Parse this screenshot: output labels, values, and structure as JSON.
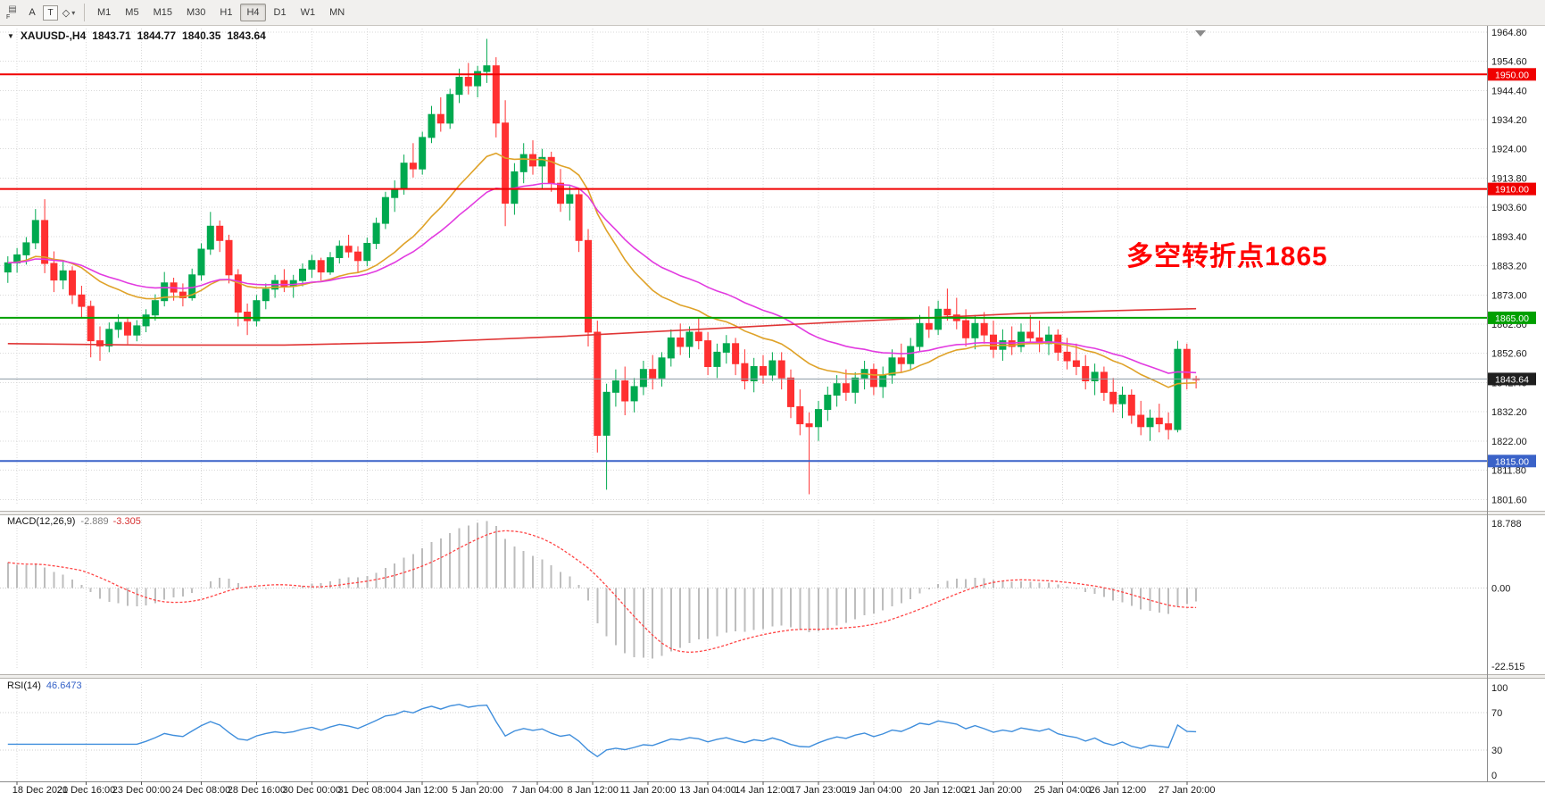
{
  "toolbar": {
    "left_tools": {
      "chart_tool_glyph": "▤",
      "chart_tool_caption": "F",
      "cursor_tool_label": "A",
      "text_tool_label": "T",
      "shapes_tool_glyph": "◇",
      "dropdown_arrow": "▾"
    },
    "timeframes": [
      "M1",
      "M5",
      "M15",
      "M30",
      "H1",
      "H4",
      "D1",
      "W1",
      "MN"
    ],
    "active_timeframe": "H4"
  },
  "chart_header": {
    "collapse_icon": "▼",
    "symbol_period": "XAUUSD-,H4",
    "ohlc": {
      "open": "1843.71",
      "high": "1844.77",
      "low": "1840.35",
      "close": "1843.64"
    }
  },
  "annotation": {
    "text": "多空转折点1865",
    "color": "#ff0000"
  },
  "indicators": {
    "macd": {
      "label": "MACD(12,26,9)",
      "value_main": "-2.889",
      "value_signal": "-3.305",
      "scale_labels": [
        "18.788",
        "0.00",
        "-22.515"
      ]
    },
    "rsi": {
      "label": "RSI(14)",
      "value": "46.6473",
      "scale_labels": [
        "100",
        "70",
        "30",
        "0"
      ],
      "levels": [
        70,
        30
      ]
    }
  },
  "price_axis": {
    "ticks": [
      "1964.80",
      "1954.60",
      "1944.40",
      "1934.20",
      "1924.00",
      "1913.80",
      "1903.60",
      "1893.40",
      "1883.20",
      "1873.00",
      "1862.80",
      "1852.60",
      "1842.40",
      "1832.20",
      "1822.00",
      "1811.80",
      "1801.60"
    ]
  },
  "horizontal_lines": [
    {
      "price": 1950.0,
      "label": "1950.00",
      "color": "#f00000"
    },
    {
      "price": 1910.0,
      "label": "1910.00",
      "color": "#f00000"
    },
    {
      "price": 1865.0,
      "label": "1865.00",
      "color": "#00a000"
    },
    {
      "price": 1815.0,
      "label": "1815.00",
      "color": "#3a62c8"
    }
  ],
  "bid_line": {
    "price": 1843.64,
    "label": "1843.64",
    "line_color": "#8c9aa5",
    "label_bg": "#1f1f1f"
  },
  "time_axis": {
    "labels": [
      [
        1,
        "18 Dec 2020"
      ],
      [
        8.5,
        "21 Dec 16:00"
      ],
      [
        14.5,
        "23 Dec 00:00"
      ],
      [
        21,
        "24 Dec 08:00"
      ],
      [
        27,
        "28 Dec 16:00"
      ],
      [
        33,
        "30 Dec 00:00"
      ],
      [
        39,
        "31 Dec 08:00"
      ],
      [
        45,
        "4 Jan 12:00"
      ],
      [
        51,
        "5 Jan 20:00"
      ],
      [
        57.5,
        "7 Jan 04:00"
      ],
      [
        63.5,
        "8 Jan 12:00"
      ],
      [
        69.5,
        "11 Jan 20:00"
      ],
      [
        76,
        "13 Jan 04:00"
      ],
      [
        82,
        "14 Jan 12:00"
      ],
      [
        88,
        "17 Jan 23:00"
      ],
      [
        94,
        "19 Jan 04:00"
      ],
      [
        101,
        "20 Jan 12:00"
      ],
      [
        107,
        "21 Jan 20:00"
      ],
      [
        114.5,
        "25 Jan 04:00"
      ],
      [
        120.5,
        "26 Jan 12:00"
      ],
      [
        128,
        "27 Jan 20:00"
      ]
    ]
  },
  "grid_color": "#d9d9d9",
  "chart_data": {
    "type": "candlestick",
    "title": "XAUUSD-,H4",
    "symbol": "XAUUSD-",
    "timeframe": "H4",
    "y_range": [
      1799.5,
      1966.0
    ],
    "bull_color": "#00a94f",
    "bear_color": "#ff3031",
    "candles": [
      [
        1881,
        1886.5,
        1877.2,
        1884.2
      ],
      [
        1884.2,
        1889.4,
        1880.8,
        1887
      ],
      [
        1887,
        1893.2,
        1883.6,
        1891.2
      ],
      [
        1891.2,
        1903,
        1889,
        1899
      ],
      [
        1899,
        1906.4,
        1880.6,
        1884
      ],
      [
        1884,
        1888.2,
        1874,
        1878.2
      ],
      [
        1878.2,
        1884.6,
        1875,
        1881.4
      ],
      [
        1881.4,
        1883,
        1869.8,
        1873
      ],
      [
        1873,
        1876.2,
        1865,
        1869
      ],
      [
        1869,
        1871,
        1851.2,
        1857
      ],
      [
        1857,
        1862,
        1850,
        1855.2
      ],
      [
        1855.2,
        1863.4,
        1853,
        1861
      ],
      [
        1861,
        1866.2,
        1858,
        1863.4
      ],
      [
        1863.4,
        1865,
        1855.8,
        1859
      ],
      [
        1859,
        1864.2,
        1856.8,
        1862.2
      ],
      [
        1862.2,
        1868,
        1860,
        1866
      ],
      [
        1866,
        1873.2,
        1864,
        1871
      ],
      [
        1871,
        1881,
        1869,
        1877.2
      ],
      [
        1877.2,
        1879,
        1871,
        1874
      ],
      [
        1874,
        1877,
        1869,
        1872
      ],
      [
        1872,
        1882.2,
        1871,
        1880
      ],
      [
        1880,
        1891,
        1878,
        1889
      ],
      [
        1889,
        1902,
        1887,
        1897
      ],
      [
        1897,
        1899,
        1888,
        1892
      ],
      [
        1892,
        1894,
        1877,
        1880
      ],
      [
        1880,
        1882,
        1862,
        1867
      ],
      [
        1867,
        1870,
        1859,
        1864
      ],
      [
        1864,
        1873,
        1862,
        1871
      ],
      [
        1871,
        1877,
        1868,
        1875
      ],
      [
        1875,
        1880,
        1872,
        1878
      ],
      [
        1878,
        1882,
        1874,
        1876
      ],
      [
        1876,
        1880,
        1872,
        1878
      ],
      [
        1878,
        1884,
        1876,
        1882
      ],
      [
        1882,
        1887,
        1879,
        1885
      ],
      [
        1885,
        1886,
        1878,
        1881
      ],
      [
        1881,
        1888,
        1880,
        1886
      ],
      [
        1886,
        1892,
        1884,
        1890
      ],
      [
        1890,
        1894,
        1886,
        1888
      ],
      [
        1888,
        1890,
        1881,
        1885
      ],
      [
        1885,
        1893,
        1883,
        1891
      ],
      [
        1891,
        1900,
        1889,
        1898
      ],
      [
        1898,
        1909,
        1896,
        1907
      ],
      [
        1907,
        1913,
        1902,
        1910
      ],
      [
        1910,
        1922,
        1908,
        1919
      ],
      [
        1919,
        1926,
        1914,
        1917
      ],
      [
        1917,
        1930,
        1915,
        1928
      ],
      [
        1928,
        1939,
        1926,
        1936
      ],
      [
        1936,
        1942,
        1930,
        1933
      ],
      [
        1933,
        1945,
        1931,
        1943
      ],
      [
        1943,
        1952,
        1940,
        1949
      ],
      [
        1949,
        1954,
        1943,
        1946
      ],
      [
        1946,
        1953,
        1942,
        1951
      ],
      [
        1951,
        1962.4,
        1947,
        1953
      ],
      [
        1953,
        1956,
        1928,
        1933
      ],
      [
        1933,
        1941,
        1897,
        1905
      ],
      [
        1905,
        1919,
        1901,
        1916
      ],
      [
        1916,
        1926,
        1912,
        1922
      ],
      [
        1922,
        1927,
        1915,
        1918
      ],
      [
        1918,
        1924,
        1910,
        1921
      ],
      [
        1921,
        1923,
        1909,
        1912
      ],
      [
        1912,
        1917,
        1902,
        1905
      ],
      [
        1905,
        1911,
        1899,
        1908
      ],
      [
        1908,
        1910,
        1888,
        1892
      ],
      [
        1892,
        1896,
        1855,
        1860
      ],
      [
        1860,
        1864,
        1818,
        1824
      ],
      [
        1824,
        1842,
        1805,
        1839
      ],
      [
        1839,
        1847,
        1834,
        1843
      ],
      [
        1843,
        1848,
        1831,
        1836
      ],
      [
        1836,
        1844,
        1832,
        1841
      ],
      [
        1841,
        1850,
        1838,
        1847
      ],
      [
        1847,
        1852,
        1840,
        1844
      ],
      [
        1844,
        1853,
        1841,
        1851
      ],
      [
        1851,
        1861,
        1848,
        1858
      ],
      [
        1858,
        1863,
        1852,
        1855
      ],
      [
        1855,
        1862,
        1851,
        1860
      ],
      [
        1860,
        1865,
        1854,
        1857
      ],
      [
        1857,
        1860,
        1845,
        1848
      ],
      [
        1848,
        1856,
        1844,
        1853
      ],
      [
        1853,
        1859,
        1849,
        1856
      ],
      [
        1856,
        1858,
        1845,
        1849
      ],
      [
        1849,
        1854,
        1840,
        1843
      ],
      [
        1843,
        1851,
        1839,
        1848
      ],
      [
        1848,
        1852,
        1842,
        1845
      ],
      [
        1845,
        1853,
        1843,
        1850
      ],
      [
        1850,
        1853,
        1840,
        1844
      ],
      [
        1844,
        1847,
        1830,
        1834
      ],
      [
        1834,
        1840,
        1824,
        1828
      ],
      [
        1828,
        1832,
        1803.4,
        1827
      ],
      [
        1827,
        1836,
        1822,
        1833
      ],
      [
        1833,
        1841,
        1829,
        1838
      ],
      [
        1838,
        1845,
        1834,
        1842
      ],
      [
        1842,
        1847,
        1836,
        1839
      ],
      [
        1839,
        1846,
        1835,
        1844
      ],
      [
        1844,
        1850,
        1840,
        1847
      ],
      [
        1847,
        1849,
        1838,
        1841
      ],
      [
        1841,
        1848,
        1837,
        1845
      ],
      [
        1845,
        1854,
        1842,
        1851
      ],
      [
        1851,
        1856,
        1846,
        1849
      ],
      [
        1849,
        1858,
        1847,
        1855
      ],
      [
        1855,
        1866,
        1853,
        1863
      ],
      [
        1863,
        1869,
        1858,
        1861
      ],
      [
        1861,
        1871,
        1859,
        1868
      ],
      [
        1868,
        1875.2,
        1864,
        1866
      ],
      [
        1866,
        1872,
        1861,
        1864
      ],
      [
        1864,
        1868,
        1855,
        1858
      ],
      [
        1858,
        1866,
        1854,
        1863
      ],
      [
        1863,
        1867,
        1856,
        1859
      ],
      [
        1859,
        1864,
        1851,
        1854
      ],
      [
        1854,
        1861,
        1850,
        1857
      ],
      [
        1857,
        1862,
        1852,
        1855
      ],
      [
        1855,
        1863,
        1853,
        1860
      ],
      [
        1860,
        1866,
        1856,
        1858
      ],
      [
        1858,
        1864,
        1853,
        1856
      ],
      [
        1856,
        1862,
        1852,
        1859
      ],
      [
        1859,
        1861,
        1850,
        1853
      ],
      [
        1853,
        1858,
        1847,
        1850
      ],
      [
        1850,
        1856,
        1845,
        1848
      ],
      [
        1848,
        1852,
        1840,
        1843
      ],
      [
        1843,
        1849,
        1838,
        1846
      ],
      [
        1846,
        1848,
        1836,
        1839
      ],
      [
        1839,
        1844,
        1832,
        1835
      ],
      [
        1835,
        1841,
        1830,
        1838
      ],
      [
        1838,
        1840,
        1828,
        1831
      ],
      [
        1831,
        1836,
        1824,
        1827
      ],
      [
        1827,
        1833,
        1822,
        1830
      ],
      [
        1830,
        1835,
        1825,
        1828
      ],
      [
        1828,
        1832,
        1822.5,
        1826
      ],
      [
        1826,
        1857,
        1825,
        1854
      ],
      [
        1854,
        1856,
        1840,
        1844
      ],
      [
        1843.71,
        1844.77,
        1840.35,
        1843.64
      ]
    ],
    "overlays": [
      {
        "name": "ma-fast-orange",
        "type": "ema",
        "period": 20,
        "color": "#dfa228"
      },
      {
        "name": "ma-mid-magenta",
        "type": "ema",
        "period": 34,
        "color": "#e23be0"
      },
      {
        "name": "ma-slow-red",
        "type": "points",
        "color": "#e03535",
        "points": [
          [
            0,
            1856
          ],
          [
            15,
            1855.5
          ],
          [
            30,
            1855.5
          ],
          [
            45,
            1856.5
          ],
          [
            60,
            1858.5
          ],
          [
            75,
            1861
          ],
          [
            90,
            1863.5
          ],
          [
            100,
            1865
          ],
          [
            110,
            1866.5
          ],
          [
            120,
            1867.5
          ],
          [
            129,
            1868.2
          ]
        ]
      }
    ],
    "macd": {
      "fast": 12,
      "slow": 26,
      "signal": 9,
      "range": [
        -22.515,
        18.788
      ],
      "histogram_color": "#bdbdbd",
      "signal_color": "#ff4545"
    },
    "rsi": {
      "period": 14,
      "color": "#3f8edc",
      "range": [
        0,
        100
      ]
    }
  }
}
